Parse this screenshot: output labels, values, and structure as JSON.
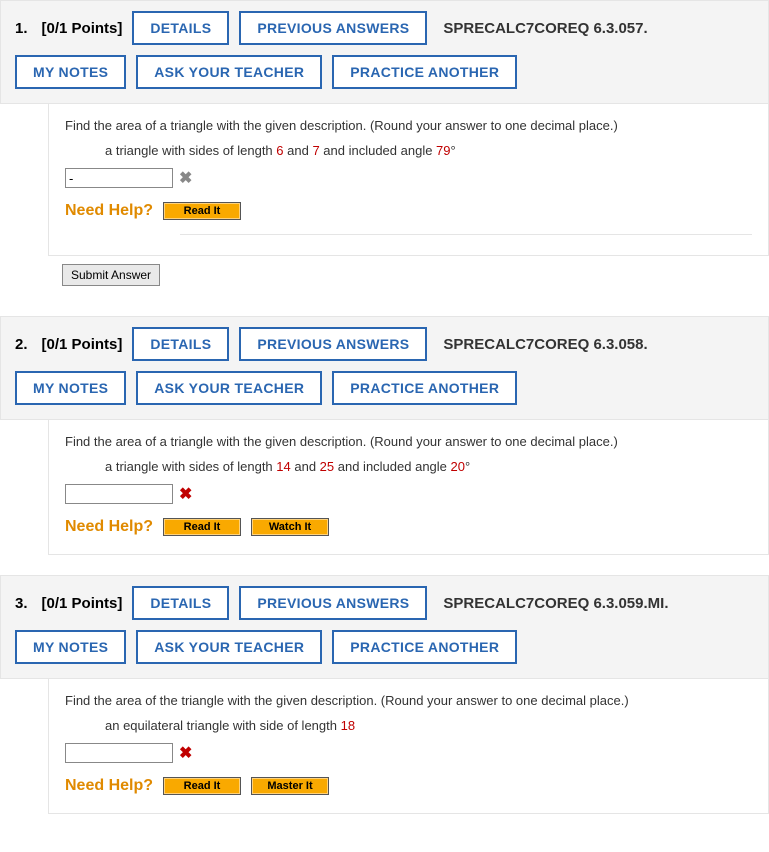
{
  "labels": {
    "details": "DETAILS",
    "previous_answers": "PREVIOUS ANSWERS",
    "my_notes": "MY NOTES",
    "ask_teacher": "ASK YOUR TEACHER",
    "practice_another": "PRACTICE ANOTHER",
    "need_help": "Need Help?",
    "read_it": "Read It",
    "watch_it": "Watch It",
    "master_it": "Master It",
    "submit": "Submit Answer"
  },
  "questions": [
    {
      "num": "1.",
      "points": "[0/1 Points]",
      "code": "SPRECALC7COREQ 6.3.057.",
      "prompt": "Find the area of a triangle with the given description. (Round your answer to one decimal place.)",
      "desc_pre1": "a triangle with sides of length ",
      "val1": "6",
      "mid1": " and ",
      "val2": "7",
      "mid2": " and included angle ",
      "val3": "79",
      "deg": "°",
      "answer_value": "-",
      "x_red": false,
      "help_buttons": [
        "read_it"
      ],
      "has_submit": true
    },
    {
      "num": "2.",
      "points": "[0/1 Points]",
      "code": "SPRECALC7COREQ 6.3.058.",
      "prompt": "Find the area of a triangle with the given description. (Round your answer to one decimal place.)",
      "desc_pre1": "a triangle with sides of length ",
      "val1": "14",
      "mid1": " and ",
      "val2": "25",
      "mid2": " and included angle ",
      "val3": "20",
      "deg": "°",
      "answer_value": "",
      "x_red": true,
      "help_buttons": [
        "read_it",
        "watch_it"
      ],
      "has_submit": false
    },
    {
      "num": "3.",
      "points": "[0/1 Points]",
      "code": "SPRECALC7COREQ 6.3.059.MI.",
      "prompt": "Find the area of the triangle with the given description. (Round your answer to one decimal place.)",
      "desc_pre1": "an equilateral triangle with side of length ",
      "val1": "18",
      "mid1": "",
      "val2": "",
      "mid2": "",
      "val3": "",
      "deg": "",
      "answer_value": "",
      "x_red": true,
      "help_buttons": [
        "read_it",
        "master_it"
      ],
      "has_submit": false
    }
  ]
}
